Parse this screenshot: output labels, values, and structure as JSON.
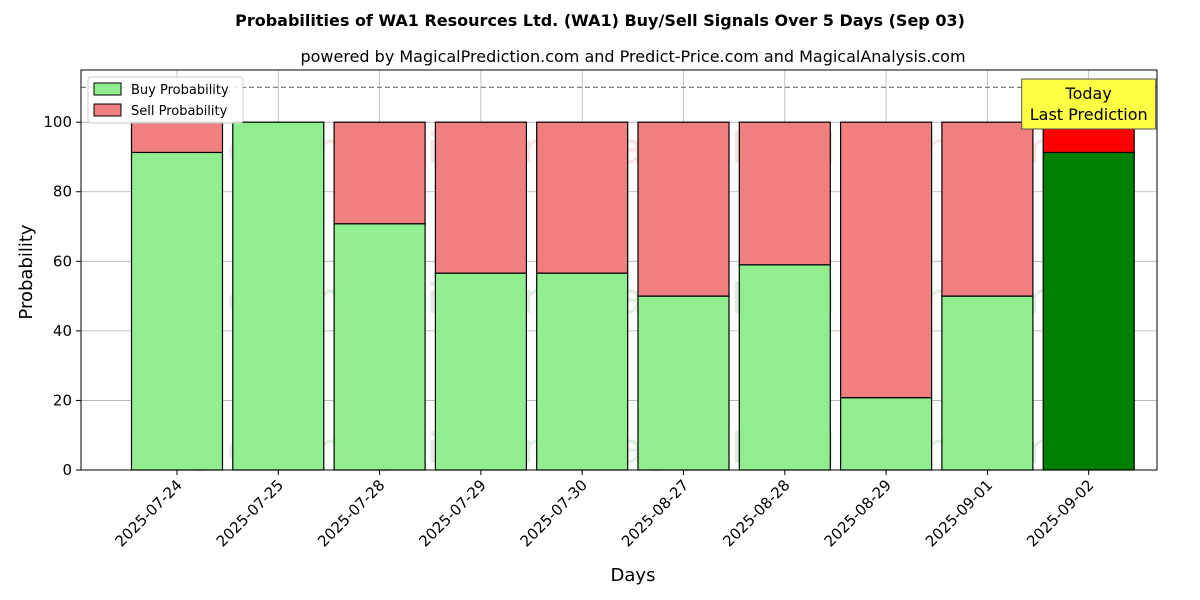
{
  "chart_data": {
    "type": "bar",
    "stacked": true,
    "title": "Probabilities of WA1 Resources Ltd. (WA1) Buy/Sell Signals Over 5 Days (Sep 03)",
    "subtitle": "powered by MagicalPrediction.com and Predict-Price.com and MagicalAnalysis.com",
    "xlabel": "Days",
    "ylabel": "Probability",
    "ylim": [
      0,
      115
    ],
    "yticks": [
      0,
      20,
      40,
      60,
      80,
      100
    ],
    "grid": true,
    "legend_placement": "top-left",
    "categories": [
      "2025-07-24",
      "2025-07-25",
      "2025-07-28",
      "2025-07-29",
      "2025-07-30",
      "2025-08-27",
      "2025-08-28",
      "2025-08-29",
      "2025-09-01",
      "2025-09-02"
    ],
    "series": [
      {
        "name": "Buy Probability",
        "color": "#90ee90",
        "highlight_color": "#008000",
        "values": [
          91.3,
          100,
          70.8,
          56.6,
          56.6,
          50.0,
          59.0,
          20.8,
          50.0,
          91.3
        ]
      },
      {
        "name": "Sell Probability",
        "color": "#f08080",
        "highlight_color": "#ff0000",
        "values": [
          8.7,
          0,
          29.2,
          43.4,
          43.4,
          50.0,
          41.0,
          79.2,
          50.0,
          8.7
        ]
      }
    ],
    "highlight_index": 9,
    "reference_line": {
      "y": 110,
      "style": "dashed",
      "color": "#808080"
    },
    "annotation": {
      "lines": [
        "Today",
        "Last Prediction"
      ],
      "background": "#ffff44",
      "target_index": 9
    },
    "watermarks": [
      "MagicalAnalysis.com",
      "MagicalPrediction.com"
    ]
  }
}
